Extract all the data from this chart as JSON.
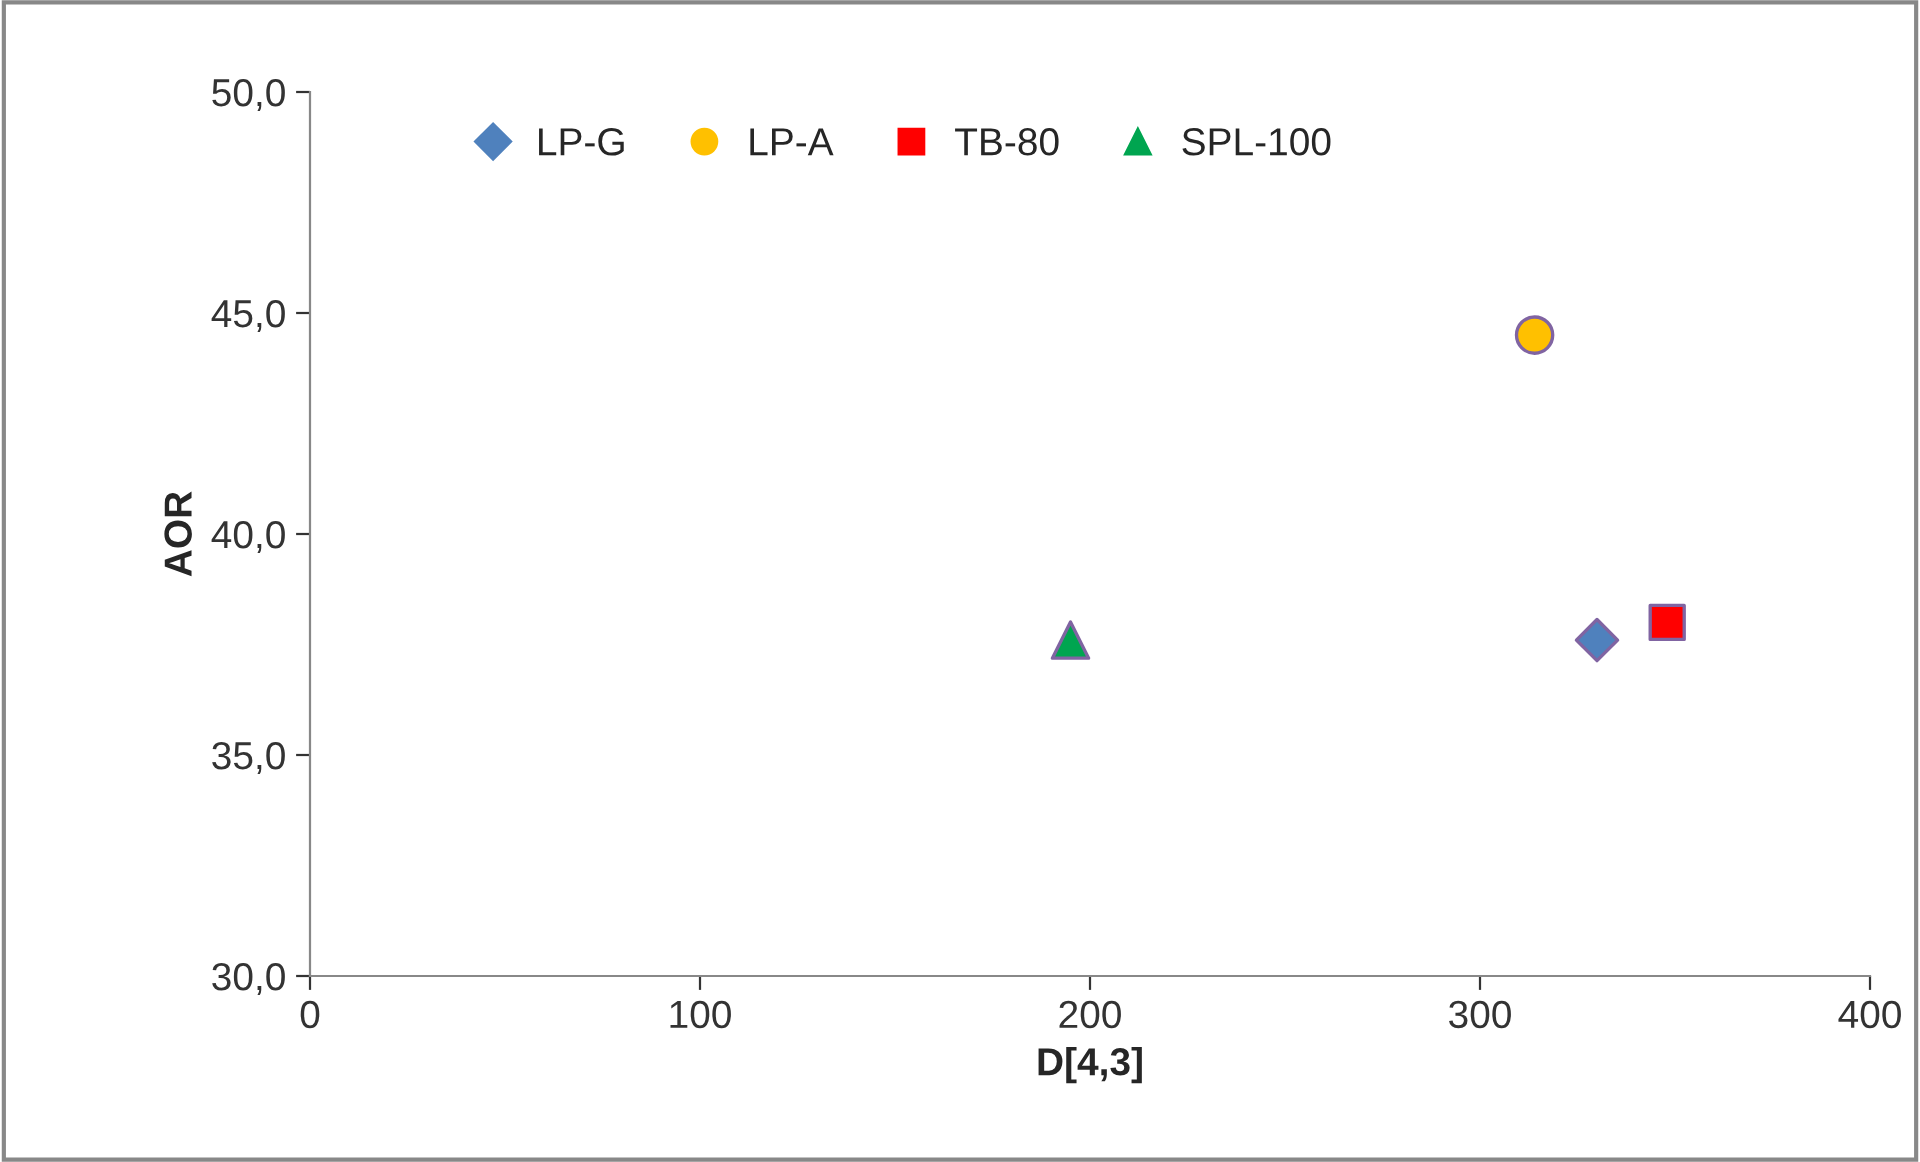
{
  "chart_data": {
    "type": "scatter",
    "xlabel": "D[4,3]",
    "ylabel": "AOR",
    "series": [
      {
        "name": "LP-G",
        "color": "#4f81bd",
        "marker": "diamond",
        "x": [
          330
        ],
        "values": [
          37.6
        ]
      },
      {
        "name": "LP-A",
        "color": "#ffc000",
        "marker": "circle",
        "x": [
          314
        ],
        "values": [
          44.5
        ]
      },
      {
        "name": "TB-80",
        "color": "#ff0000",
        "marker": "square",
        "x": [
          348
        ],
        "values": [
          38.0
        ]
      },
      {
        "name": "SPL-100",
        "color": "#00a550",
        "marker": "triangle",
        "x": [
          195
        ],
        "values": [
          37.6
        ]
      }
    ],
    "xlim": [
      0,
      400
    ],
    "xticks": [
      0,
      100,
      200,
      300,
      400
    ],
    "ylim": [
      30,
      50
    ],
    "yticks": [
      {
        "value": 30,
        "label": "30,0"
      },
      {
        "value": 35,
        "label": "35,0"
      },
      {
        "value": 40,
        "label": "40,0"
      },
      {
        "value": 45,
        "label": "45,0"
      },
      {
        "value": 50,
        "label": "50,0"
      }
    ],
    "grid": false,
    "legend": "top left"
  }
}
